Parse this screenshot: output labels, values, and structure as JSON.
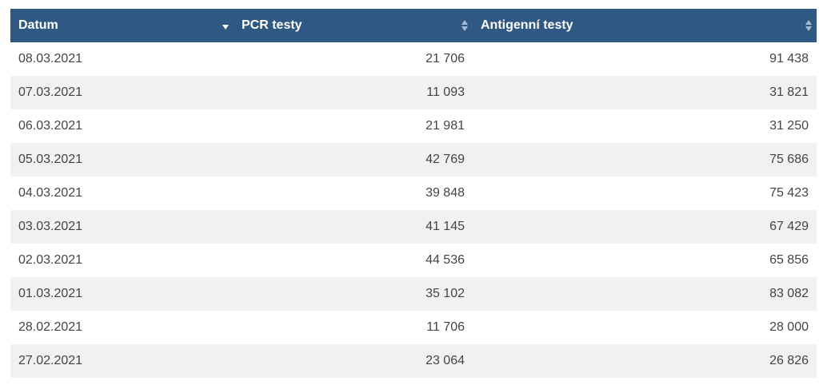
{
  "table": {
    "headers": {
      "date": "Datum",
      "pcr": "PCR testy",
      "antigen": "Antigenní testy"
    },
    "sort": {
      "column": "date",
      "direction": "desc"
    },
    "rows": [
      {
        "date": "08.03.2021",
        "pcr": "21 706",
        "antigen": "91 438"
      },
      {
        "date": "07.03.2021",
        "pcr": "11 093",
        "antigen": "31 821"
      },
      {
        "date": "06.03.2021",
        "pcr": "21 981",
        "antigen": "31 250"
      },
      {
        "date": "05.03.2021",
        "pcr": "42 769",
        "antigen": "75 686"
      },
      {
        "date": "04.03.2021",
        "pcr": "39 848",
        "antigen": "75 423"
      },
      {
        "date": "03.03.2021",
        "pcr": "41 145",
        "antigen": "67 429"
      },
      {
        "date": "02.03.2021",
        "pcr": "44 536",
        "antigen": "65 856"
      },
      {
        "date": "01.03.2021",
        "pcr": "35 102",
        "antigen": "83 082"
      },
      {
        "date": "28.02.2021",
        "pcr": "11 706",
        "antigen": "28 000"
      },
      {
        "date": "27.02.2021",
        "pcr": "23 064",
        "antigen": "26 826"
      }
    ]
  },
  "colors": {
    "header_bg": "#2f5883",
    "row_alt_bg": "#f1f1f1",
    "text": "#444444"
  }
}
